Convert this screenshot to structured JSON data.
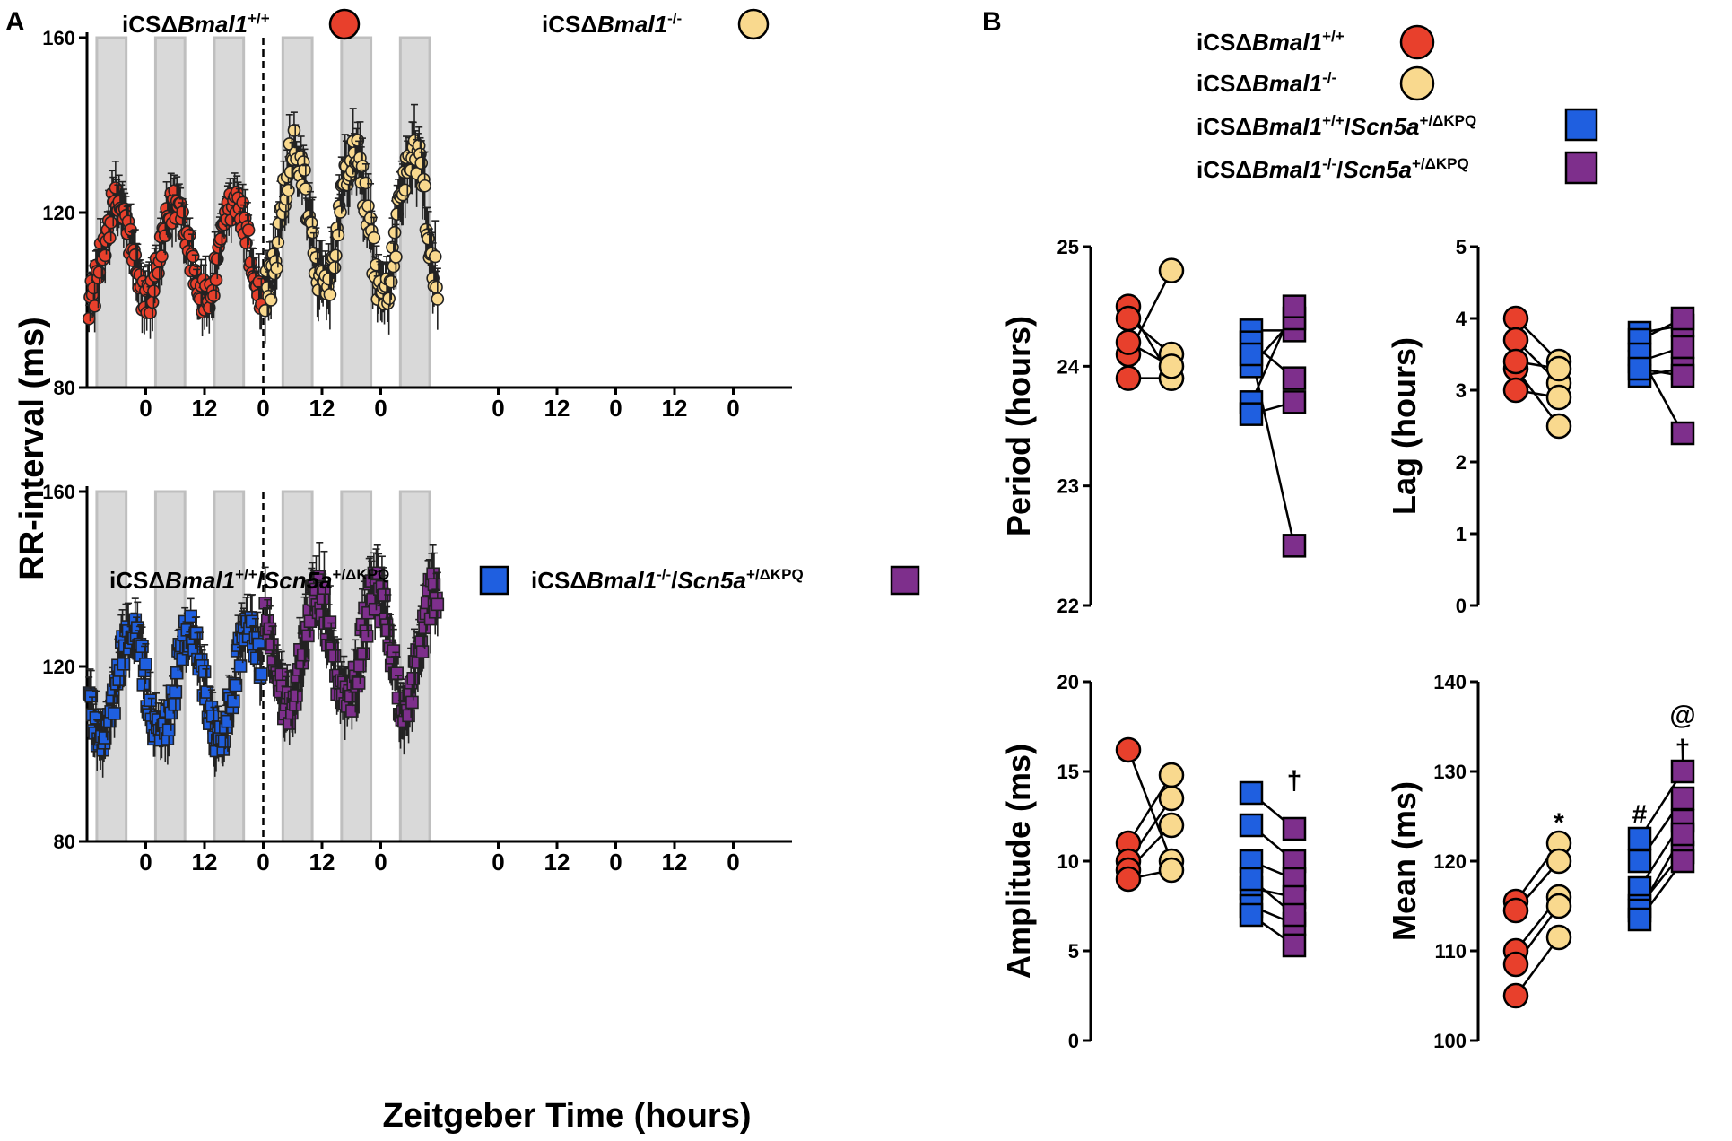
{
  "panel_labels": {
    "a": "A",
    "b": "B"
  },
  "colors": {
    "wt": "#e8402c",
    "ko": "#f9d98e",
    "wt_kpq": "#1f5fe0",
    "ko_kpq": "#7e2f8c",
    "night": "#d9d9d9",
    "night_edge": "#bfbfbf",
    "axis": "#000000"
  },
  "groups": {
    "wt": {
      "prefix": "iCSΔ",
      "gene": "Bmal1",
      "sup": "+/+",
      "gene2": "",
      "sup2": ""
    },
    "ko": {
      "prefix": "iCSΔ",
      "gene": "Bmal1",
      "sup": "-/-",
      "gene2": "",
      "sup2": ""
    },
    "wt_kpq": {
      "prefix": "iCSΔ",
      "gene": "Bmal1",
      "sup": "+/+",
      "gene2": "Scn5a",
      "sup2": "+/ΔKPQ"
    },
    "ko_kpq": {
      "prefix": "iCSΔ",
      "gene": "Bmal1",
      "sup": "-/-",
      "gene2": "Scn5a",
      "sup2": "+/ΔKPQ"
    }
  },
  "chart_data": [
    {
      "id": "A-top",
      "type": "scatter",
      "ylabel": "RR-interval (ms)",
      "xlabel": "Zeitgeber Time (hours)",
      "ylim": [
        80,
        160
      ],
      "yticks": [
        80,
        120,
        160
      ],
      "x_unit": "hours",
      "xlim": [
        0,
        144
      ],
      "xtick_positions": [
        12,
        24,
        36,
        48,
        60,
        84,
        96,
        108,
        120,
        132
      ],
      "xtick_labels": [
        "0",
        "12",
        "0",
        "12",
        "0",
        "0",
        "12",
        "0",
        "12",
        "0"
      ],
      "dark_periods": [
        [
          2,
          8
        ],
        [
          14,
          20
        ],
        [
          26,
          32
        ],
        [
          40,
          46
        ],
        [
          52,
          58
        ],
        [
          64,
          70
        ]
      ],
      "divider_x": 36,
      "series": [
        {
          "group": "wt",
          "marker": "circle",
          "x_start": 0,
          "x_end": 36,
          "mean": 111,
          "amplitude": 11,
          "peak_x": 18.2,
          "period": 12,
          "noise": 4.5,
          "err": 5,
          "points": 150
        },
        {
          "group": "ko",
          "marker": "circle",
          "x_start": 36,
          "x_end": 72,
          "mean": 118,
          "amplitude": 16,
          "peak_x": 42.5,
          "period": 12,
          "noise": 5,
          "err": 6,
          "points": 150
        }
      ]
    },
    {
      "id": "A-bottom",
      "type": "scatter",
      "ylabel": "RR-interval (ms)",
      "xlabel": "Zeitgeber Time (hours)",
      "ylim": [
        80,
        160
      ],
      "yticks": [
        80,
        120,
        160
      ],
      "x_unit": "hours",
      "xlim": [
        0,
        144
      ],
      "xtick_positions": [
        12,
        24,
        36,
        48,
        60,
        84,
        96,
        108,
        120,
        132
      ],
      "xtick_labels": [
        "0",
        "12",
        "0",
        "12",
        "0",
        "0",
        "12",
        "0",
        "12",
        "0"
      ],
      "dark_periods": [
        [
          2,
          8
        ],
        [
          14,
          20
        ],
        [
          26,
          32
        ],
        [
          40,
          46
        ],
        [
          52,
          58
        ],
        [
          64,
          70
        ]
      ],
      "divider_x": 36,
      "series": [
        {
          "group": "wt_kpq",
          "marker": "square",
          "x_start": 0,
          "x_end": 36,
          "mean": 116,
          "amplitude": 12,
          "peak_x": 21,
          "period": 12,
          "noise": 4.5,
          "err": 5,
          "points": 150
        },
        {
          "group": "ko_kpq",
          "marker": "square",
          "x_start": 36,
          "x_end": 72,
          "mean": 124,
          "amplitude": 13,
          "peak_x": 47,
          "period": 12,
          "noise": 5,
          "err": 6,
          "points": 150
        }
      ]
    },
    {
      "id": "B-period",
      "type": "scatter",
      "ylabel": "Period (hours)",
      "ylim": [
        22,
        25
      ],
      "yticks": [
        22,
        23,
        24,
        25
      ],
      "pairs": [
        {
          "groups": [
            "wt",
            "ko"
          ],
          "marker": "circle",
          "lines": [
            [
              24.5,
              23.9
            ],
            [
              24.4,
              24.1
            ],
            [
              24.1,
              24.8
            ],
            [
              23.9,
              23.9
            ],
            [
              24.2,
              24.0
            ]
          ]
        },
        {
          "groups": [
            "wt_kpq",
            "ko_kpq"
          ],
          "marker": "square",
          "lines": [
            [
              24.3,
              24.3
            ],
            [
              24.0,
              24.4
            ],
            [
              23.7,
              24.5
            ],
            [
              24.2,
              23.9
            ],
            [
              23.6,
              23.7
            ],
            [
              24.1,
              22.5
            ]
          ]
        }
      ],
      "annotations": []
    },
    {
      "id": "B-lag",
      "type": "scatter",
      "ylabel": "Lag (hours)",
      "ylim": [
        0,
        5
      ],
      "yticks": [
        0,
        1,
        2,
        3,
        4,
        5
      ],
      "pairs": [
        {
          "groups": [
            "wt",
            "ko"
          ],
          "marker": "circle",
          "lines": [
            [
              4.0,
              3.4
            ],
            [
              3.7,
              3.1
            ],
            [
              3.3,
              2.5
            ],
            [
              3.4,
              3.3
            ],
            [
              3.0,
              2.9
            ]
          ]
        },
        {
          "groups": [
            "wt_kpq",
            "ko_kpq"
          ],
          "marker": "square",
          "lines": [
            [
              3.8,
              3.9
            ],
            [
              3.4,
              3.6
            ],
            [
              3.2,
              3.3
            ],
            [
              3.7,
              4.0
            ],
            [
              3.5,
              2.4
            ],
            [
              3.3,
              3.2
            ]
          ]
        }
      ],
      "annotations": []
    },
    {
      "id": "B-amplitude",
      "type": "scatter",
      "ylabel": "Amplitude (ms)",
      "ylim": [
        0,
        20
      ],
      "yticks": [
        0,
        5,
        10,
        15,
        20
      ],
      "pairs": [
        {
          "groups": [
            "wt",
            "ko"
          ],
          "marker": "circle",
          "lines": [
            [
              16.2,
              10.0
            ],
            [
              11.0,
              14.8
            ],
            [
              10.0,
              13.5
            ],
            [
              9.5,
              12.0
            ],
            [
              9.0,
              9.5
            ]
          ]
        },
        {
          "groups": [
            "wt_kpq",
            "ko_kpq"
          ],
          "marker": "square",
          "lines": [
            [
              13.8,
              11.8
            ],
            [
              12.0,
              10.0
            ],
            [
              10.0,
              9.0
            ],
            [
              8.5,
              8.0
            ],
            [
              7.5,
              6.5
            ],
            [
              7.0,
              5.3
            ],
            [
              9.0,
              7.0
            ]
          ]
        }
      ],
      "annotations": [
        {
          "text": "†",
          "column": 3,
          "value": 14.5
        }
      ]
    },
    {
      "id": "B-mean",
      "type": "scatter",
      "ylabel": "Mean (ms)",
      "ylim": [
        100,
        140
      ],
      "yticks": [
        100,
        110,
        120,
        130,
        140
      ],
      "pairs": [
        {
          "groups": [
            "wt",
            "ko"
          ],
          "marker": "circle",
          "lines": [
            [
              115.5,
              122.0
            ],
            [
              114.5,
              120.0
            ],
            [
              110.0,
              116.0
            ],
            [
              108.5,
              115.0
            ],
            [
              105.0,
              111.5
            ]
          ]
        },
        {
          "groups": [
            "wt_kpq",
            "ko_kpq"
          ],
          "marker": "square",
          "lines": [
            [
              122.5,
              130.0
            ],
            [
              120.0,
              127.0
            ],
            [
              117.0,
              124.5
            ],
            [
              115.0,
              121.0
            ],
            [
              114.5,
              123.0
            ],
            [
              113.5,
              120.0
            ]
          ]
        }
      ],
      "annotations": [
        {
          "text": "*",
          "column": 1,
          "value": 124.3
        },
        {
          "text": "#",
          "column": 2,
          "value": 125.2
        },
        {
          "text": "†",
          "column": 3,
          "value": 132.5
        },
        {
          "text": "@",
          "column": 3,
          "value": 136.3
        }
      ]
    }
  ]
}
